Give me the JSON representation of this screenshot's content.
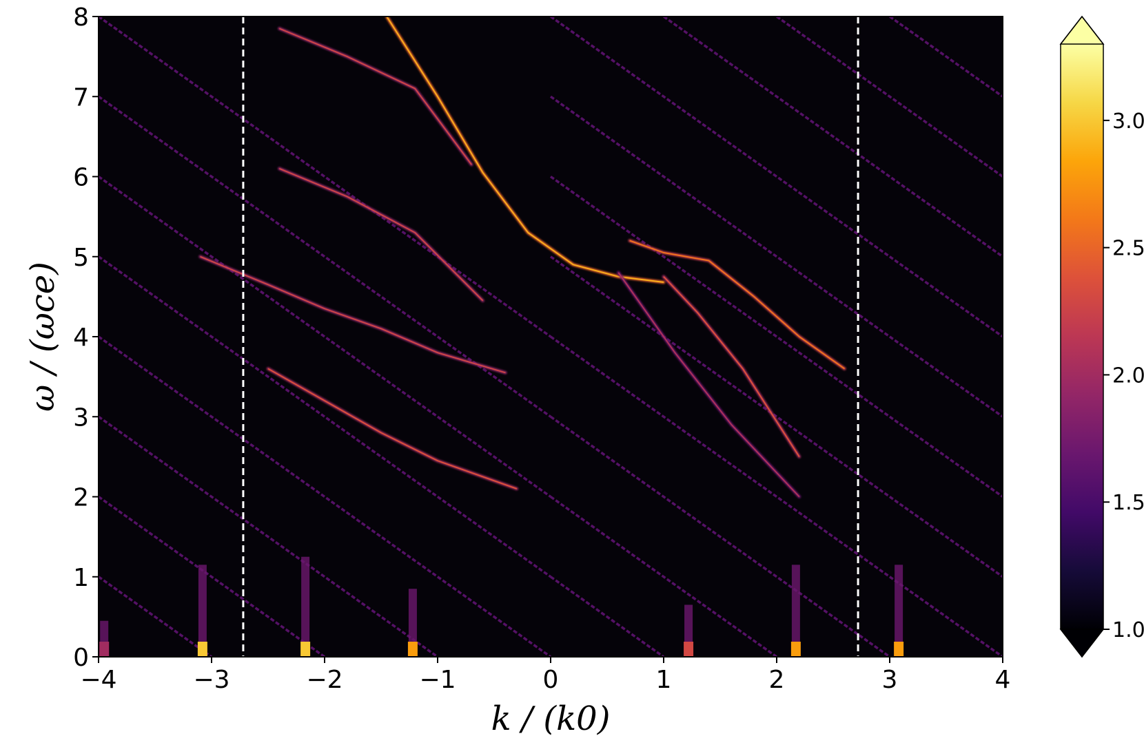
{
  "chart_data": {
    "type": "heatmap",
    "title": "",
    "xlabel": "k / (k0)",
    "ylabel": "ω / (ωce)",
    "xlim": [
      -4,
      4
    ],
    "ylim": [
      0,
      8
    ],
    "x_ticks": [
      -4,
      -3,
      -2,
      -1,
      0,
      1,
      2,
      3,
      4
    ],
    "x_tick_labels": [
      "−4",
      "−3",
      "−2",
      "−1",
      "0",
      "1",
      "2",
      "3",
      "4"
    ],
    "y_ticks": [
      0,
      1,
      2,
      3,
      4,
      5,
      6,
      7,
      8
    ],
    "y_tick_labels": [
      "0",
      "1",
      "2",
      "3",
      "4",
      "5",
      "6",
      "7",
      "8"
    ],
    "colorbar": {
      "colormap": "inferno",
      "range": [
        1.0,
        3.3
      ],
      "extend": "both",
      "ticks": [
        1.0,
        1.5,
        2.0,
        2.5,
        3.0
      ],
      "tick_labels": [
        "1.0",
        "1.5",
        "2.0",
        "2.5",
        "3.0"
      ]
    },
    "vertical_dashed_lines_x": [
      -2.72,
      2.72
    ],
    "background_color": "#050309",
    "cyclotron_harmonic_lines": {
      "slope": -1.0,
      "left_family_offsets": [
        -3,
        -2,
        -1,
        0,
        1,
        2,
        3,
        4
      ],
      "right_family_offsets": [
        1,
        2,
        3,
        4,
        5,
        6,
        7,
        8,
        9,
        10,
        11
      ],
      "intensity": 1.6
    },
    "dispersion_branches": [
      {
        "name": "",
        "x": [
          -3.1,
          -2.5,
          -2.0,
          -1.5,
          -1.0,
          -0.4
        ],
        "y": [
          5.0,
          4.65,
          4.35,
          4.1,
          3.8,
          3.55
        ],
        "intensity": 1.9
      },
      {
        "name": "",
        "x": [
          -2.5,
          -2.0,
          -1.5,
          -1.0,
          -0.3
        ],
        "y": [
          3.6,
          3.2,
          2.8,
          2.45,
          2.1
        ],
        "intensity": 2.0
      },
      {
        "name": "",
        "x": [
          -2.4,
          -1.8,
          -1.2,
          -0.6
        ],
        "y": [
          6.1,
          5.75,
          5.3,
          4.45
        ],
        "intensity": 1.9
      },
      {
        "name": "",
        "x": [
          -2.4,
          -1.8,
          -1.2,
          -0.7
        ],
        "y": [
          7.85,
          7.5,
          7.1,
          6.15
        ],
        "intensity": 1.9
      },
      {
        "name": "",
        "x": [
          -1.45,
          -1.0,
          -0.6,
          -0.2,
          0.2,
          0.6,
          1.0
        ],
        "y": [
          8.0,
          7.0,
          6.05,
          5.3,
          4.9,
          4.75,
          4.68
        ],
        "intensity": 2.5
      },
      {
        "name": "",
        "x": [
          0.7,
          1.0,
          1.4,
          1.8,
          2.2,
          2.6
        ],
        "y": [
          5.2,
          5.05,
          4.95,
          4.5,
          4.0,
          3.6
        ],
        "intensity": 2.2
      },
      {
        "name": "",
        "x": [
          1.0,
          1.3,
          1.7,
          2.2
        ],
        "y": [
          4.75,
          4.3,
          3.6,
          2.5
        ],
        "intensity": 2.0
      },
      {
        "name": "",
        "x": [
          0.6,
          1.1,
          1.6,
          2.2
        ],
        "y": [
          4.8,
          3.8,
          2.9,
          2.0
        ],
        "intensity": 1.7
      }
    ],
    "hot_spots": [
      {
        "x": -3.08,
        "y": 0.05,
        "height": 1.1,
        "intensity": 3.0
      },
      {
        "x": -2.17,
        "y": 0.05,
        "height": 1.2,
        "intensity": 3.0
      },
      {
        "x": -1.22,
        "y": 0.05,
        "height": 0.8,
        "intensity": 2.8
      },
      {
        "x": 1.22,
        "y": 0.05,
        "height": 0.6,
        "intensity": 2.3
      },
      {
        "x": 2.17,
        "y": 0.05,
        "height": 1.1,
        "intensity": 2.8
      },
      {
        "x": 3.08,
        "y": 0.05,
        "height": 1.1,
        "intensity": 2.8
      },
      {
        "x": -3.95,
        "y": 0.05,
        "height": 0.4,
        "intensity": 2.0
      }
    ]
  }
}
